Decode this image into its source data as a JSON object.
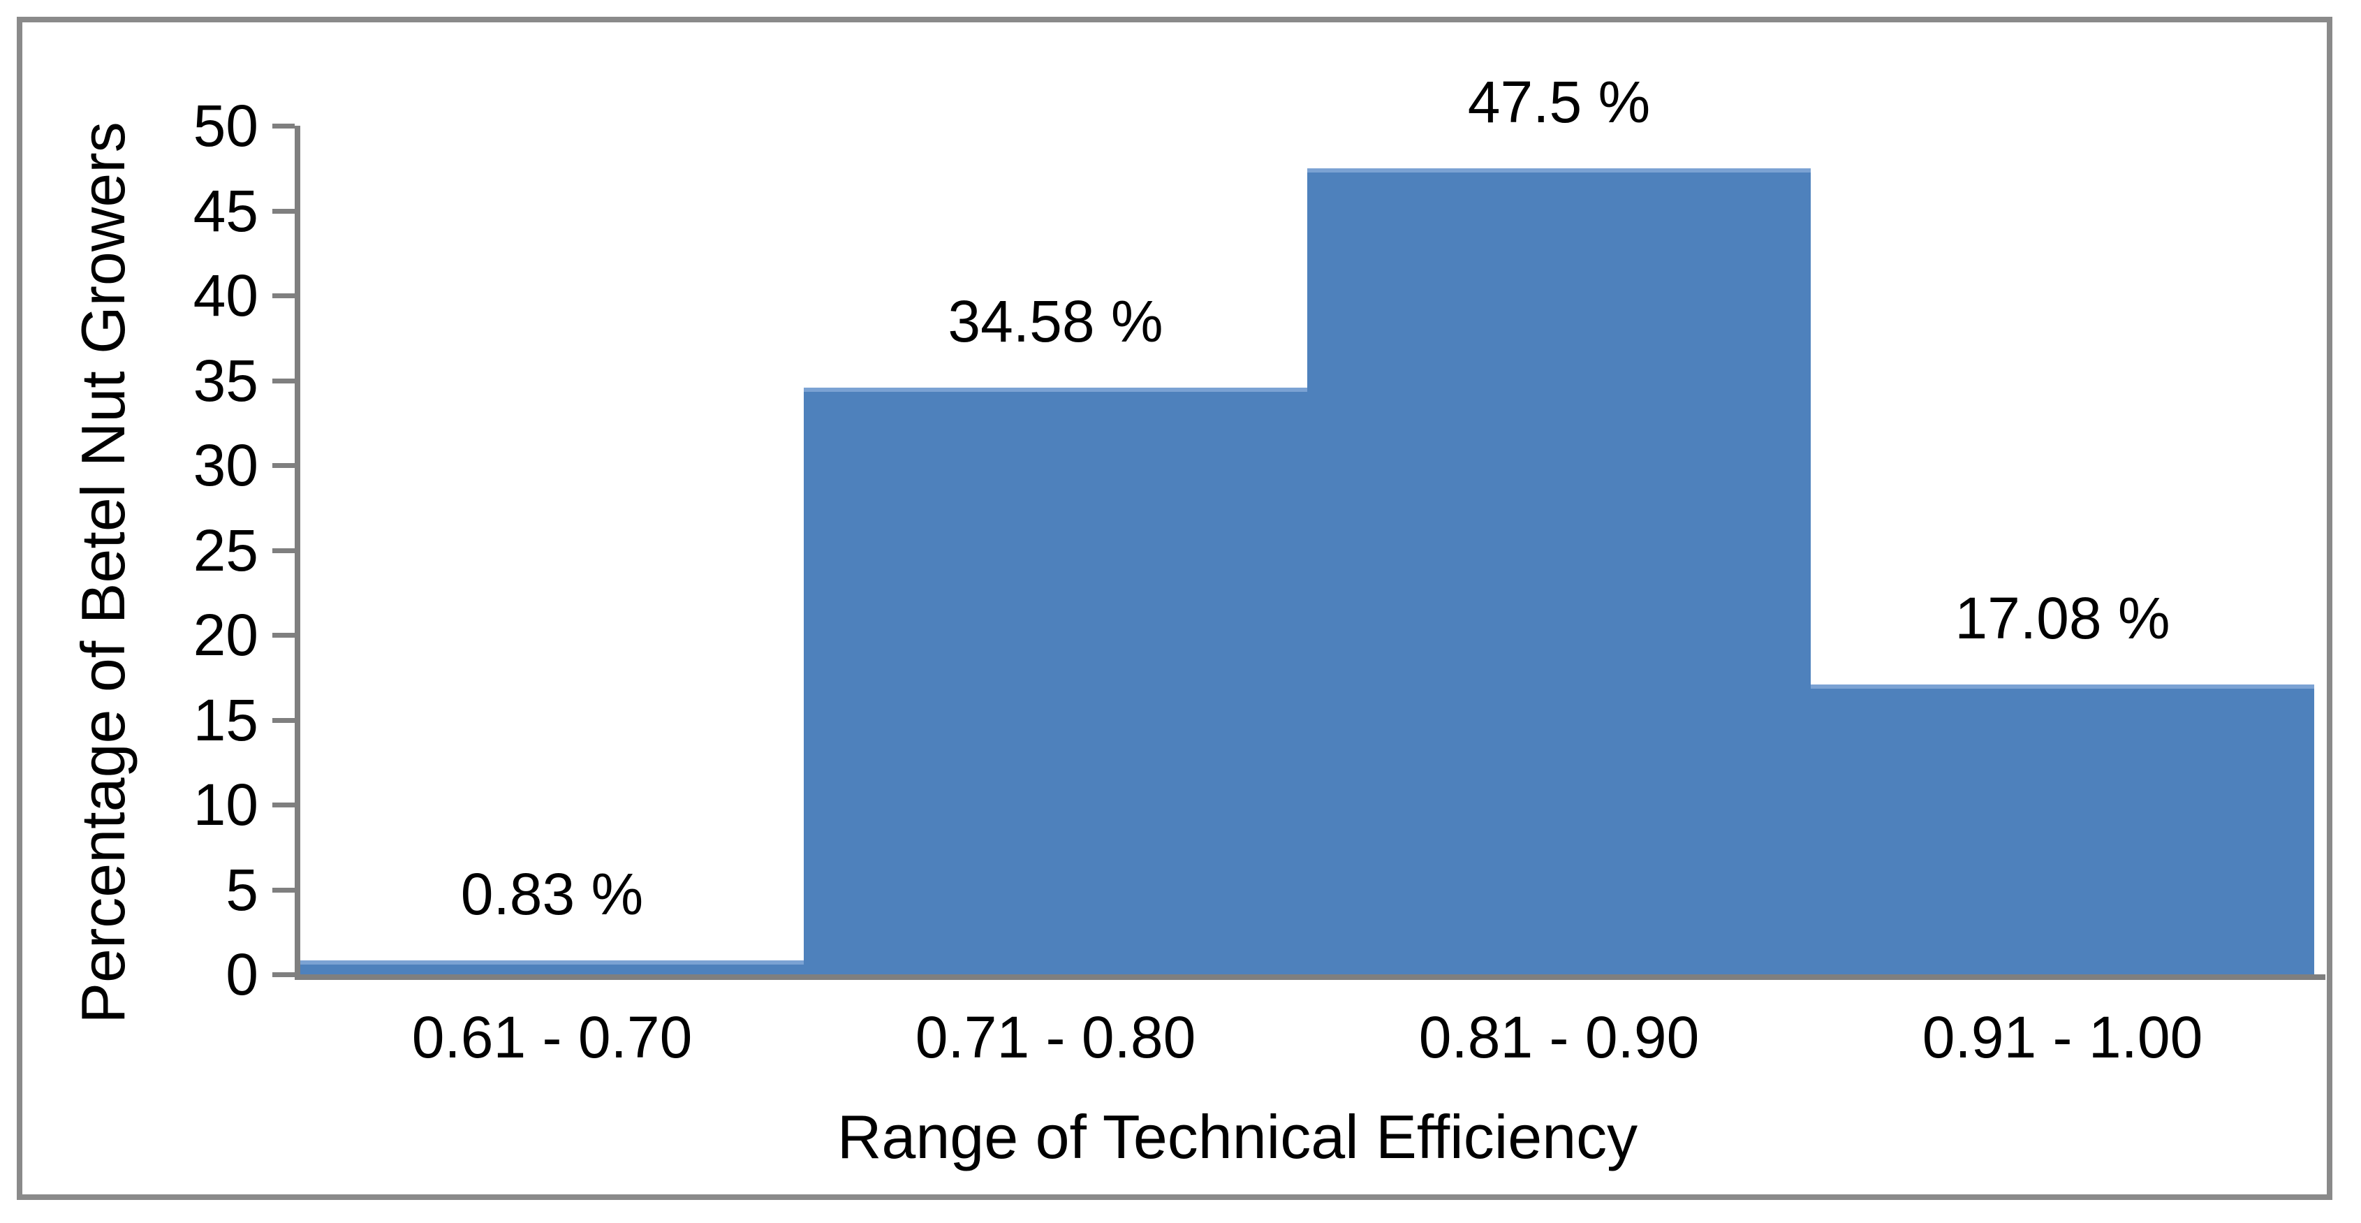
{
  "chart_data": {
    "type": "bar",
    "title": "",
    "categories": [
      "0.61 - 0.70",
      "0.71 - 0.80",
      "0.81 - 0.90",
      "0.91 - 1.00"
    ],
    "values": [
      0.83,
      34.58,
      47.5,
      17.08
    ],
    "value_labels": [
      "0.83 %",
      "34.58 %",
      "47.5 %",
      "17.08 %"
    ],
    "xlabel": "Range of Technical Efficiency",
    "ylabel": "Percentage of Betel Nut Growers",
    "ylim": [
      0,
      50
    ],
    "yticks": [
      0,
      5,
      10,
      15,
      20,
      25,
      30,
      35,
      40,
      45,
      50
    ],
    "grid": false,
    "legend": false,
    "bar_color": "#4e81bc",
    "bar_top_edge_color": "#7ba2d3",
    "axis_color": "#7f7f7f",
    "frame_color": "#8a8a8a",
    "text_color": "#000000"
  }
}
